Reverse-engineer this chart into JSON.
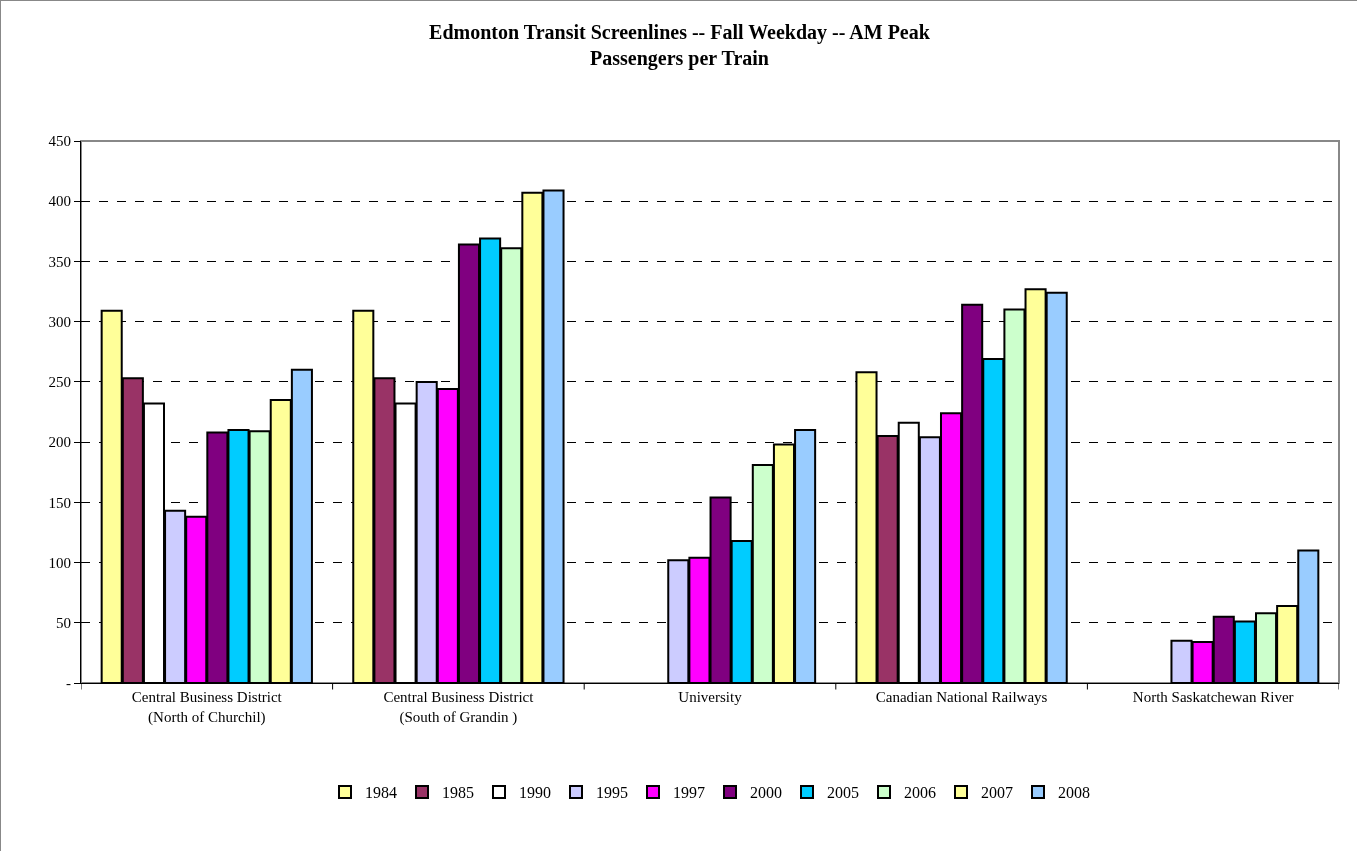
{
  "chart_data": {
    "type": "bar",
    "title": "Edmonton Transit Screenlines -- Fall Weekday -- AM Peak\nPassengers per Train",
    "categories": [
      "Central Business District\n(North of Churchil)",
      "Central Business District\n(South of Grandin )",
      "University",
      "Canadian National Railways",
      "North Saskatchewan River"
    ],
    "series": [
      {
        "name": "1984",
        "color": "#ffff99",
        "values": [
          309,
          309,
          null,
          258,
          null
        ]
      },
      {
        "name": "1985",
        "color": "#993366",
        "values": [
          253,
          253,
          null,
          205,
          null
        ]
      },
      {
        "name": "1990",
        "color": "#ffffff",
        "values": [
          232,
          232,
          null,
          216,
          null
        ]
      },
      {
        "name": "1995",
        "color": "#ccccff",
        "values": [
          143,
          250,
          102,
          204,
          35
        ]
      },
      {
        "name": "1997",
        "color": "#ff00ff",
        "values": [
          138,
          244,
          104,
          224,
          34
        ]
      },
      {
        "name": "2000",
        "color": "#800080",
        "values": [
          208,
          364,
          154,
          314,
          55
        ]
      },
      {
        "name": "2005",
        "color": "#00ccff",
        "values": [
          210,
          369,
          118,
          269,
          51
        ]
      },
      {
        "name": "2006",
        "color": "#ccffcc",
        "values": [
          209,
          361,
          181,
          310,
          58
        ]
      },
      {
        "name": "2007",
        "color": "#ffff99",
        "values": [
          235,
          407,
          198,
          327,
          64
        ]
      },
      {
        "name": "2008",
        "color": "#99ccff",
        "values": [
          260,
          409,
          210,
          324,
          110
        ]
      }
    ],
    "ylim": [
      0,
      450
    ],
    "yticks": [
      {
        "value": 0,
        "label": "-"
      },
      50,
      100,
      150,
      200,
      250,
      300,
      350,
      400,
      450
    ],
    "grid": "y",
    "line_style": "dashed",
    "legend": "bottom"
  }
}
